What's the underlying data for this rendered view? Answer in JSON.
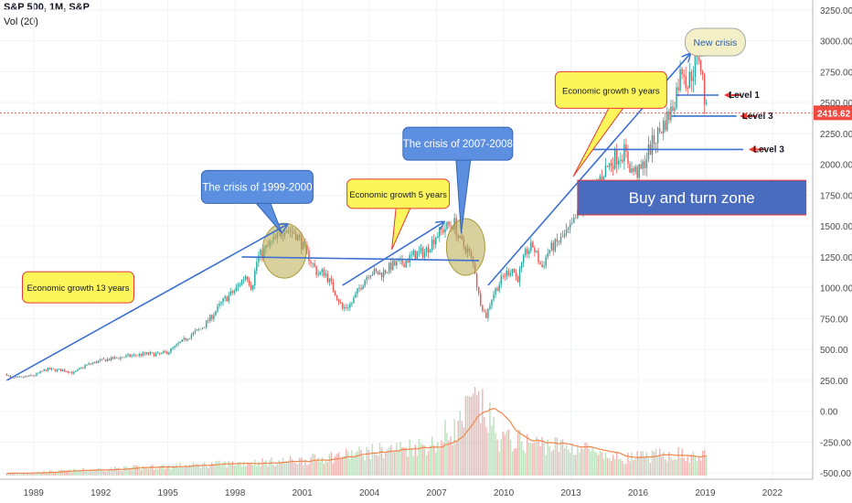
{
  "header": {
    "symbol_line": "S&P 500, 1M, S&P",
    "volume_line": "Vol (20)"
  },
  "chart_data": {
    "type": "candlestick",
    "price_axis": {
      "ticks": [
        "3250.00",
        "3000.00",
        "2750.00",
        "2500.00",
        "2250.00",
        "2000.00",
        "1750.00",
        "1500.00",
        "1250.00",
        "1000.00",
        "750.00",
        "500.00",
        "250.00",
        "0.00",
        "-250.00",
        "-500.00"
      ],
      "range": [
        -550,
        3330
      ],
      "last_price_label": "2416.62",
      "last_price": 2416.62
    },
    "time_axis": {
      "ticks": [
        "1989",
        "1992",
        "1995",
        "1998",
        "2001",
        "2004",
        "2007",
        "2010",
        "2013",
        "2016",
        "2019",
        "2022"
      ],
      "range": [
        1987.5,
        2023.8
      ]
    },
    "price_path": [
      [
        1987.8,
        300
      ],
      [
        1988.0,
        265
      ],
      [
        1988.5,
        275
      ],
      [
        1989.0,
        290
      ],
      [
        1989.6,
        340
      ],
      [
        1990.4,
        330
      ],
      [
        1990.8,
        310
      ],
      [
        1991.3,
        370
      ],
      [
        1992.0,
        410
      ],
      [
        1993.0,
        440
      ],
      [
        1994.0,
        465
      ],
      [
        1994.6,
        460
      ],
      [
        1995.0,
        480
      ],
      [
        1995.6,
        560
      ],
      [
        1996.0,
        615
      ],
      [
        1996.5,
        670
      ],
      [
        1997.0,
        780
      ],
      [
        1997.5,
        900
      ],
      [
        1998.0,
        980
      ],
      [
        1998.5,
        1110
      ],
      [
        1998.75,
        1000
      ],
      [
        1999.0,
        1240
      ],
      [
        1999.5,
        1340
      ],
      [
        2000.0,
        1430
      ],
      [
        2000.2,
        1490
      ],
      [
        2000.7,
        1440
      ],
      [
        2001.0,
        1350
      ],
      [
        2001.4,
        1210
      ],
      [
        2001.7,
        1110
      ],
      [
        2002.0,
        1130
      ],
      [
        2002.5,
        950
      ],
      [
        2002.8,
        830
      ],
      [
        2003.2,
        870
      ],
      [
        2003.5,
        980
      ],
      [
        2004.0,
        1130
      ],
      [
        2004.5,
        1110
      ],
      [
        2005.0,
        1180
      ],
      [
        2005.5,
        1200
      ],
      [
        2006.0,
        1270
      ],
      [
        2006.5,
        1290
      ],
      [
        2007.0,
        1430
      ],
      [
        2007.5,
        1500
      ],
      [
        2007.8,
        1520
      ],
      [
        2008.0,
        1390
      ],
      [
        2008.4,
        1300
      ],
      [
        2008.7,
        1160
      ],
      [
        2008.85,
        960
      ],
      [
        2009.0,
        870
      ],
      [
        2009.2,
        760
      ],
      [
        2009.5,
        940
      ],
      [
        2010.0,
        1100
      ],
      [
        2010.4,
        1160
      ],
      [
        2010.6,
        1060
      ],
      [
        2011.0,
        1290
      ],
      [
        2011.3,
        1340
      ],
      [
        2011.7,
        1160
      ],
      [
        2012.0,
        1300
      ],
      [
        2012.5,
        1380
      ],
      [
        2013.0,
        1480
      ],
      [
        2013.5,
        1660
      ],
      [
        2014.0,
        1800
      ],
      [
        2014.5,
        1950
      ],
      [
        2015.0,
        2060
      ],
      [
        2015.4,
        2100
      ],
      [
        2015.7,
        1950
      ],
      [
        2016.1,
        1930
      ],
      [
        2016.5,
        2120
      ],
      [
        2017.0,
        2280
      ],
      [
        2017.5,
        2440
      ],
      [
        2018.0,
        2810
      ],
      [
        2018.2,
        2640
      ],
      [
        2018.7,
        2900
      ],
      [
        2018.85,
        2740
      ],
      [
        2019.0,
        2480
      ],
      [
        2019.05,
        2416.62
      ]
    ],
    "volume_color_up": "#a5d6a7",
    "volume_color_down": "#ef9a9a",
    "volume_ma_color": "#f0874a",
    "candle_up_color": "#26a69a",
    "candle_down_color": "#ef5350",
    "trendline_color": "#3c70d1",
    "levels": [
      {
        "label": "Level 1",
        "price": 2560,
        "from": 2017.7,
        "to": 2019.6,
        "label_x": 2020.7,
        "arrow_x": 2020.0
      },
      {
        "label": "Level 3",
        "price": 2390,
        "from": 2017.5,
        "to": 2020.4,
        "label_x": 2021.3,
        "arrow_x": 2020.7
      },
      {
        "label": "Level 3",
        "price": 2120,
        "from": 2013.8,
        "to": 2020.7,
        "label_x": 2021.8,
        "arrow_x": 2021.1
      }
    ],
    "support_line": {
      "from": [
        1998.3,
        1250
      ],
      "to": [
        2008.9,
        1220
      ]
    },
    "trend_arrows": [
      {
        "from": [
          1987.8,
          250
        ],
        "to": [
          2000.3,
          1510
        ]
      },
      {
        "from": [
          2002.8,
          1020
        ],
        "to": [
          2007.3,
          1530
        ]
      },
      {
        "from": [
          2009.3,
          1020
        ],
        "to": [
          2018.3,
          2890
        ]
      }
    ],
    "crisis_circles": [
      {
        "x": 2000.2,
        "price": 1300,
        "rx": 24,
        "ry": 30
      },
      {
        "x": 2008.3,
        "price": 1330,
        "rx": 21,
        "ry": 31
      }
    ],
    "callouts": [
      {
        "text": "Economic growth 13 years",
        "style": "yellow",
        "x": 1988.5,
        "price": 1130,
        "w": 122,
        "h": 34,
        "tip": [
          1993.4,
          970
        ]
      },
      {
        "text": "The crisis of 1999-2000",
        "style": "blue",
        "x": 1996.5,
        "price": 1950,
        "w": 122,
        "h": 36,
        "tip": [
          2000.1,
          1440
        ]
      },
      {
        "text": "Economic growth 5 years",
        "style": "yellow",
        "x": 2003.0,
        "price": 1880,
        "w": 112,
        "h": 32,
        "tip": [
          2005.0,
          1310
        ]
      },
      {
        "text": "The crisis of 2007-2008",
        "style": "blue",
        "x": 2005.5,
        "price": 2300,
        "w": 120,
        "h": 36,
        "tip": [
          2008.1,
          1440
        ]
      },
      {
        "text": "Economic growth 9 years",
        "style": "yellow",
        "x": 2012.3,
        "price": 2750,
        "w": 122,
        "h": 40,
        "tip": [
          2013.1,
          1900
        ]
      }
    ],
    "new_crisis": {
      "text": "New crisis",
      "x": 2018.1,
      "price": 3100,
      "w": 66,
      "h": 30,
      "tip": [
        2018.5,
        2870
      ]
    },
    "buy_zone": {
      "text": "Buy and turn zone",
      "x1": 2013.3,
      "x2": 2023.5,
      "p1": 1870,
      "p2": 1590,
      "fill": "#4a6cbf"
    }
  }
}
